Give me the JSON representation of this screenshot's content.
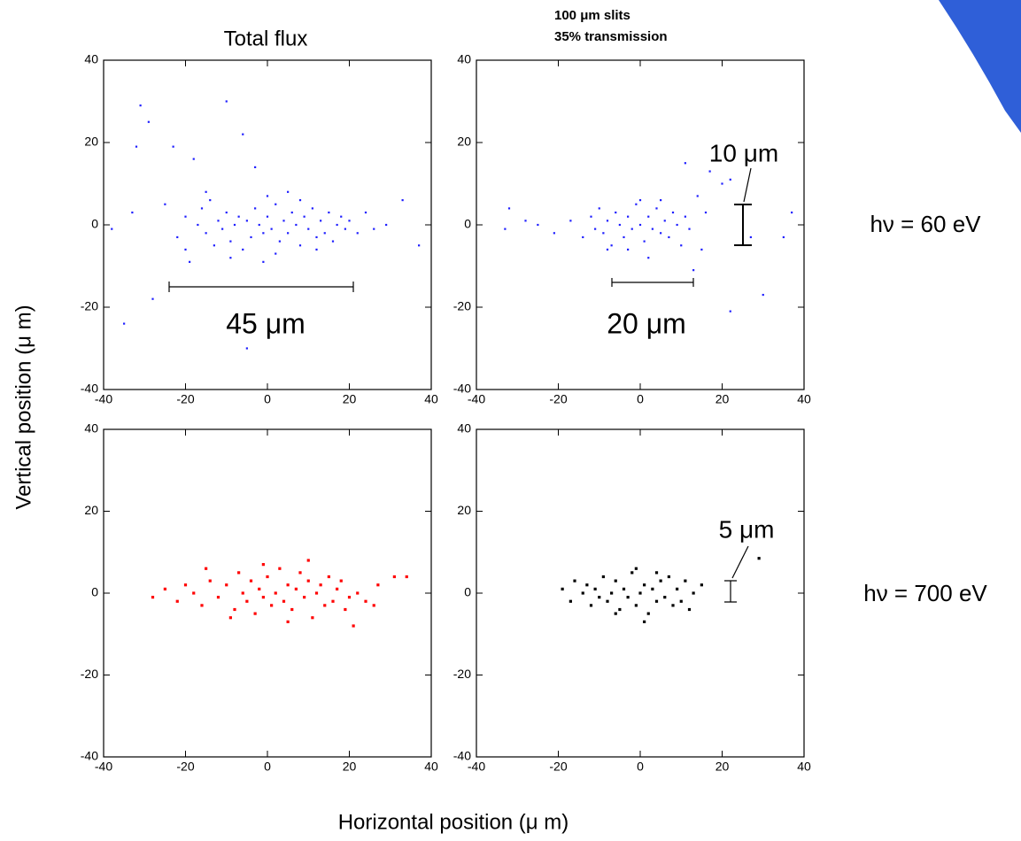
{
  "x_label": "Horizontal position (μ m)",
  "y_label": "Vertical position (μ m)",
  "row_labels": [
    "hν = 60 eV",
    "hν = 700 eV"
  ],
  "chart_data": [
    {
      "type": "scatter",
      "title": "Total flux",
      "annotations": [
        "45 μm"
      ],
      "xlim": [
        -40,
        40
      ],
      "ylim": [
        -40,
        40
      ],
      "xticks": [
        -40,
        -20,
        0,
        20,
        40
      ],
      "yticks": [
        -40,
        -20,
        0,
        20,
        40
      ],
      "series": [
        {
          "color": "#1f1fff",
          "x": [
            -38,
            -35,
            -33,
            -32,
            -31,
            -29,
            -28,
            -25,
            -23,
            -22,
            -20,
            -19,
            -18,
            -17,
            -16,
            -15,
            -14,
            -13,
            -12,
            -11,
            -10,
            -10,
            -9,
            -8,
            -7,
            -6,
            -5,
            -4,
            -3,
            -2,
            -1,
            0,
            1,
            2,
            3,
            4,
            5,
            6,
            7,
            8,
            9,
            10,
            11,
            12,
            13,
            14,
            15,
            16,
            17,
            18,
            19,
            20,
            22,
            24,
            26,
            29,
            33,
            37,
            -6,
            -3,
            -5,
            0,
            -15,
            8,
            2,
            -9,
            5,
            -20,
            12,
            -1
          ],
          "y": [
            -1,
            -24,
            3,
            19,
            29,
            25,
            -18,
            5,
            19,
            -3,
            2,
            -9,
            16,
            0,
            4,
            -2,
            6,
            -5,
            1,
            -1,
            30,
            3,
            -4,
            0,
            2,
            -6,
            1,
            -3,
            4,
            0,
            -2,
            2,
            -1,
            5,
            -4,
            1,
            -2,
            3,
            0,
            -5,
            2,
            -1,
            4,
            -3,
            1,
            -2,
            3,
            -4,
            0,
            2,
            -1,
            1,
            -2,
            3,
            -1,
            0,
            6,
            -5,
            22,
            14,
            -30,
            7,
            8,
            6,
            -7,
            -8,
            8,
            -6,
            -6,
            -9
          ]
        }
      ]
    },
    {
      "type": "scatter",
      "title": "100 μm slits",
      "subtitle": "35% transmission",
      "annotations": [
        "20 μm",
        "10 μm"
      ],
      "xlim": [
        -40,
        40
      ],
      "ylim": [
        -40,
        40
      ],
      "xticks": [
        -40,
        -20,
        0,
        20,
        40
      ],
      "yticks": [
        -40,
        -20,
        0,
        20,
        40
      ],
      "series": [
        {
          "color": "#1f1fff",
          "x": [
            -33,
            -32,
            -28,
            -25,
            -21,
            -17,
            -14,
            -12,
            -11,
            -10,
            -9,
            -8,
            -7,
            -6,
            -5,
            -4,
            -3,
            -2,
            -1,
            0,
            1,
            2,
            3,
            4,
            5,
            6,
            7,
            8,
            9,
            10,
            11,
            12,
            14,
            15,
            16,
            11,
            17,
            20,
            22,
            27,
            30,
            22,
            35,
            37,
            0,
            -3,
            5,
            2,
            -8,
            13
          ],
          "y": [
            -1,
            4,
            1,
            0,
            -2,
            1,
            -3,
            2,
            -1,
            4,
            -2,
            1,
            -5,
            3,
            0,
            -3,
            2,
            -1,
            5,
            0,
            -4,
            2,
            -1,
            4,
            -2,
            1,
            -3,
            3,
            0,
            -5,
            2,
            -1,
            7,
            -6,
            3,
            15,
            13,
            10,
            11,
            -3,
            -17,
            -21,
            -3,
            3,
            6,
            -6,
            6,
            -8,
            -6,
            -11
          ]
        }
      ]
    },
    {
      "type": "scatter",
      "xlim": [
        -40,
        40
      ],
      "ylim": [
        -40,
        40
      ],
      "xticks": [
        -40,
        -20,
        0,
        20,
        40
      ],
      "yticks": [
        -40,
        -20,
        0,
        20,
        40
      ],
      "series": [
        {
          "color": "#ff0000",
          "x": [
            -28,
            -25,
            -22,
            -20,
            -18,
            -16,
            -14,
            -12,
            -10,
            -8,
            -7,
            -6,
            -5,
            -4,
            -3,
            -2,
            -1,
            0,
            1,
            2,
            3,
            4,
            5,
            6,
            7,
            8,
            9,
            10,
            11,
            12,
            13,
            14,
            15,
            16,
            17,
            18,
            19,
            20,
            21,
            22,
            24,
            26,
            27,
            31,
            34,
            -9,
            -1,
            10,
            -15,
            5
          ],
          "y": [
            -1,
            1,
            -2,
            2,
            0,
            -3,
            3,
            -1,
            2,
            -4,
            5,
            0,
            -2,
            3,
            -5,
            1,
            -1,
            4,
            -3,
            0,
            6,
            -2,
            2,
            -4,
            1,
            5,
            -1,
            3,
            -6,
            0,
            2,
            -3,
            4,
            -2,
            1,
            3,
            -4,
            -1,
            -8,
            0,
            -2,
            -3,
            2,
            4,
            4,
            -6,
            7,
            8,
            6,
            -7
          ]
        }
      ]
    },
    {
      "type": "scatter",
      "annotations": [
        "5 μm"
      ],
      "xlim": [
        -40,
        40
      ],
      "ylim": [
        -40,
        40
      ],
      "xticks": [
        -40,
        -20,
        0,
        20,
        40
      ],
      "yticks": [
        -40,
        -20,
        0,
        20,
        40
      ],
      "series": [
        {
          "color": "#000000",
          "x": [
            -19,
            -17,
            -16,
            -14,
            -13,
            -12,
            -11,
            -10,
            -9,
            -8,
            -7,
            -6,
            -5,
            -4,
            -3,
            -2,
            -1,
            0,
            1,
            2,
            3,
            4,
            5,
            6,
            7,
            8,
            9,
            10,
            11,
            12,
            13,
            15,
            -1,
            1,
            -6,
            29,
            4
          ],
          "y": [
            1,
            -2,
            3,
            0,
            2,
            -3,
            1,
            -1,
            4,
            -2,
            0,
            3,
            -4,
            1,
            -1,
            5,
            -3,
            0,
            2,
            -5,
            1,
            -2,
            3,
            -1,
            4,
            -3,
            1,
            -2,
            3,
            -4,
            0,
            2,
            6,
            -7,
            -5,
            8.5,
            5
          ]
        }
      ]
    }
  ]
}
